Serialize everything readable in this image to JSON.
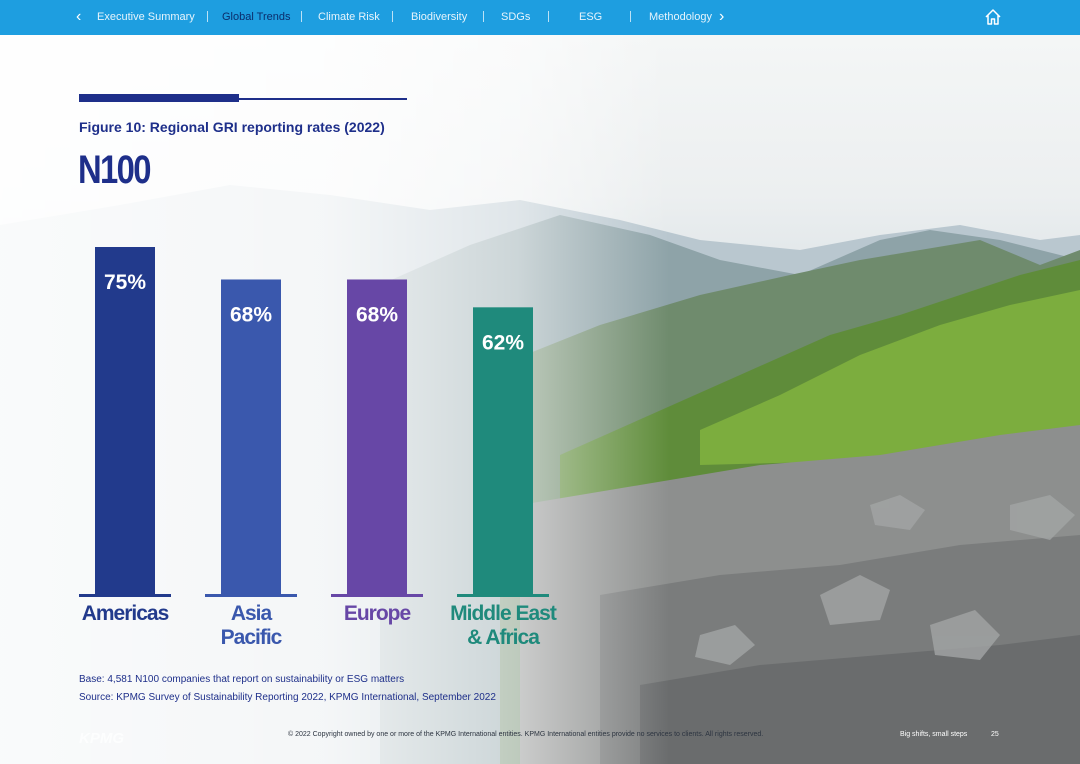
{
  "nav": {
    "items": [
      "Executive Summary",
      "Global Trends",
      "Climate Risk",
      "Biodiversity",
      "SDGs",
      "ESG",
      "Methodology"
    ],
    "active": "Global Trends",
    "icons": {
      "prev": "chevron-left-icon",
      "next": "chevron-right-icon",
      "home": "home-icon"
    }
  },
  "figure": {
    "title": "Figure 10: Regional GRI reporting rates (2022)",
    "subtitle": "N100"
  },
  "chart_data": {
    "type": "bar",
    "categories": [
      "Americas",
      "Asia Pacific",
      "Europe",
      "Middle East & Africa"
    ],
    "category_lines": [
      [
        "Americas"
      ],
      [
        "Asia",
        "Pacific"
      ],
      [
        "Europe"
      ],
      [
        "Middle East",
        "& Africa"
      ]
    ],
    "values": [
      75,
      68,
      68,
      62
    ],
    "value_labels": [
      "75%",
      "68%",
      "68%",
      "62%"
    ],
    "unit": "%",
    "colors": [
      "#223a8c",
      "#3a58ad",
      "#6747a6",
      "#1f8a7c"
    ],
    "ylim": [
      0,
      100
    ],
    "grid": false,
    "legend": "none"
  },
  "notes": {
    "base": "Base: 4,581 N100 companies that report on sustainability or ESG matters",
    "source": "Source: KPMG Survey of Sustainability Reporting 2022, KPMG International, September 2022"
  },
  "footer": {
    "logo": "KPMG",
    "copyright": "© 2022 Copyright owned by one or more of the KPMG International entities. KPMG International entities provide no services to clients. All rights reserved.",
    "tagline": "Big shifts, small steps",
    "page": "25"
  }
}
